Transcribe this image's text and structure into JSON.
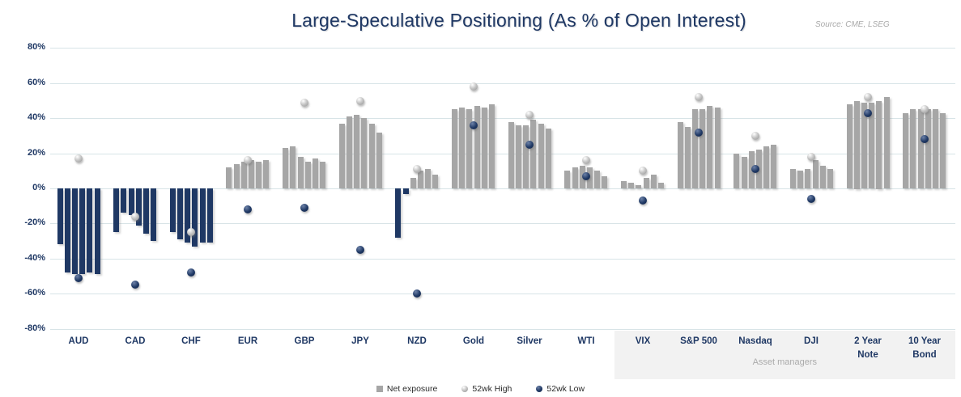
{
  "title": "Large-Speculative Positioning (As % of Open Interest)",
  "source": "Source: CME, LSEG",
  "legend": [
    {
      "label": "Net exposure",
      "marker": "square-gray"
    },
    {
      "label": "52wk High",
      "marker": "sphere-gray"
    },
    {
      "label": "52wk Low",
      "marker": "sphere-navy"
    }
  ],
  "annotation": {
    "label": "Asset managers"
  },
  "colors": {
    "positive_bar": "#A6A6A6",
    "negative_bar": "#1F3864",
    "high_marker": "#BFBFBF",
    "low_marker": "#1F3864",
    "title_text": "#1F3864",
    "gridline": "#D8E4E7",
    "shaded_region": "#F2F2F2"
  },
  "chart_data": {
    "type": "bar",
    "title": "Large-Speculative Positioning (As % of Open Interest)",
    "xlabel": "",
    "ylabel": "",
    "ylim": [
      -80,
      80
    ],
    "ytick_step": 20,
    "ytick_labels": [
      "80%",
      "60%",
      "40%",
      "20%",
      "0%",
      "-20%",
      "-40%",
      "-60%",
      "-80%"
    ],
    "grid": true,
    "legend_position": "bottom",
    "bars_per_category": 6,
    "categories": [
      "AUD",
      "CAD",
      "CHF",
      "EUR",
      "GBP",
      "JPY",
      "NZD",
      "Gold",
      "Silver",
      "WTI",
      "VIX",
      "S&P 500",
      "Nasdaq",
      "DJI",
      "2 Year Note",
      "10 Year Bond"
    ],
    "category_display": [
      "AUD",
      "CAD",
      "CHF",
      "EUR",
      "GBP",
      "JPY",
      "NZD",
      "Gold",
      "Silver",
      "WTI",
      "VIX",
      "S&P 500",
      "Nasdaq",
      "DJI",
      "2 Year\nNote",
      "10 Year\nBond"
    ],
    "series": [
      {
        "name": "Net exposure (6 recent readings, % of open interest)",
        "values": [
          [
            -32,
            -48,
            -49,
            -49,
            -48,
            -49
          ],
          [
            -25,
            -14,
            -15,
            -21,
            -26,
            -30
          ],
          [
            -25,
            -29,
            -31,
            -33,
            -31,
            -31
          ],
          [
            12,
            14,
            15,
            16,
            15,
            16
          ],
          [
            23,
            24,
            18,
            15,
            17,
            15
          ],
          [
            37,
            41,
            42,
            40,
            37,
            32
          ],
          [
            -28,
            -3,
            6,
            10,
            11,
            8
          ],
          [
            45,
            46,
            45,
            47,
            46,
            48
          ],
          [
            38,
            36,
            36,
            39,
            37,
            34
          ],
          [
            10,
            12,
            13,
            12,
            10,
            7
          ],
          [
            4,
            3,
            2,
            6,
            8,
            3
          ],
          [
            38,
            35,
            45,
            45,
            47,
            46
          ],
          [
            20,
            18,
            21,
            22,
            24,
            25
          ],
          [
            11,
            10,
            11,
            16,
            13,
            11
          ],
          [
            48,
            50,
            49,
            49,
            50,
            52
          ],
          [
            43,
            45,
            45,
            45,
            45,
            43
          ]
        ]
      },
      {
        "name": "52wk High",
        "values": [
          17,
          -16,
          -25,
          16,
          49,
          50,
          11,
          58,
          42,
          16,
          10,
          52,
          30,
          18,
          52,
          45
        ]
      },
      {
        "name": "52wk Low",
        "values": [
          -51,
          -55,
          -48,
          -12,
          -11,
          -35,
          -60,
          36,
          25,
          7,
          -7,
          32,
          11,
          -6,
          43,
          28
        ]
      }
    ],
    "asset_managers_group_start_index": 10,
    "asset_managers_group": [
      "VIX",
      "S&P 500",
      "Nasdaq",
      "DJI",
      "2 Year Note",
      "10 Year Bond"
    ]
  }
}
